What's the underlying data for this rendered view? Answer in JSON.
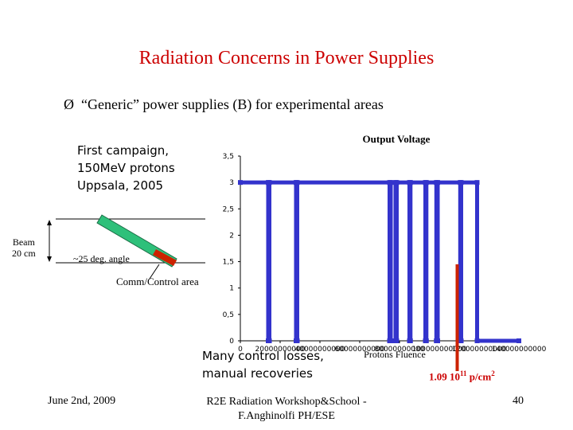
{
  "title": "Radiation Concerns in Power Supplies",
  "bullet": {
    "symbol": "Ø",
    "text": "“Generic” power supplies (B) for experimental areas"
  },
  "campaign": {
    "line1": "First campaign,",
    "line2": "150MeV protons",
    "line3": "Uppsala, 2005"
  },
  "diagram": {
    "beam_line1": "Beam",
    "beam_line2": "20 cm",
    "angle": "~25 deg. angle",
    "comm_area": "Comm/Control area",
    "colors": {
      "box": "#2ec07a",
      "comm": "#cc2200"
    }
  },
  "annotations": {
    "losses_line1": "Many control losses,",
    "losses_line2": "manual recoveries",
    "fluence_base": "1.09 10",
    "fluence_exp": "11",
    "fluence_unit": " p/cm",
    "fluence_exp2": "2"
  },
  "footer": {
    "date": "June 2nd, 2009",
    "center_line1": "R2E Radiation Workshop&School -",
    "center_line2": "F.Anghinolfi PH/ESE",
    "page": "40"
  },
  "chart_data": {
    "type": "line",
    "title": "Output Voltage",
    "xlabel": "Protons Fluence",
    "ylabel": "",
    "xlim": [
      0,
      140000000000
    ],
    "ylim": [
      0,
      3.5
    ],
    "y_ticks": [
      "0",
      "0,5",
      "1",
      "1,5",
      "2",
      "2,5",
      "3",
      "3,5"
    ],
    "x_ticks": [
      "0",
      "20000000000",
      "40000000000",
      "60000000000",
      "80000000000",
      "100000000000",
      "120000000000",
      "140000000000"
    ],
    "series_color": "#3333cc",
    "marker_color": "#cc2200",
    "marker_x": 109000000000,
    "series": [
      {
        "x": [
          0,
          14000000000,
          14000000000,
          14600000000,
          14600000000,
          28000000000,
          28000000000,
          28600000000,
          28600000000,
          75000000000,
          75000000000,
          75600000000,
          75600000000,
          78000000000,
          78000000000,
          78600000000,
          78600000000,
          85000000000,
          85000000000,
          85500000000,
          85500000000,
          93000000000,
          93000000000,
          93500000000,
          93500000000,
          98500000000,
          98500000000,
          99200000000,
          99200000000,
          110500000000,
          110500000000,
          111000000000,
          111000000000,
          119000000000,
          119000000000,
          140000000000
        ],
        "y": [
          3,
          3,
          0,
          0,
          3,
          3,
          0,
          0,
          3,
          3,
          0,
          0,
          3,
          3,
          0,
          0,
          3,
          3,
          0,
          0,
          3,
          3,
          0,
          0,
          3,
          3,
          0,
          0,
          3,
          3,
          0,
          0,
          3,
          3,
          0,
          0
        ]
      }
    ]
  }
}
